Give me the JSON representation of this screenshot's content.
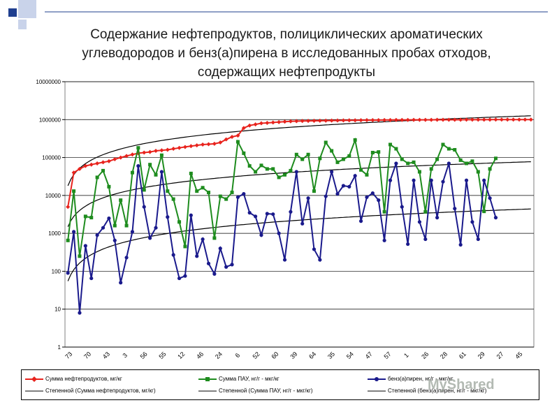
{
  "title_lines": [
    "Содержание нефтепродуктов, полициклических ароматических",
    "углеводородов  и бенз(а)пирена в исследованных пробах отходов,",
    "содержащих нефтепродукты"
  ],
  "watermark": "MyShared",
  "colors": {
    "red": "#e8231d",
    "green": "#1e8c1e",
    "blue": "#1a1a8c",
    "trend": "#000000",
    "accent": "#1f3f8f"
  },
  "chart_data": {
    "type": "line",
    "yscale": "log",
    "ylim": [
      1,
      10000000
    ],
    "y_ticks": [
      "1",
      "10",
      "100",
      "1000",
      "10000",
      "100000",
      "1000000",
      "10000000"
    ],
    "x_tick_labels": [
      "73",
      "70",
      "43",
      "3",
      "56",
      "55",
      "12",
      "46",
      "24",
      "6",
      "52",
      "60",
      "39",
      "64",
      "35",
      "54",
      "47",
      "57",
      "1",
      "26",
      "28",
      "61",
      "29",
      "27",
      "45"
    ],
    "grid": "horizontal",
    "legend_position": "bottom",
    "series": [
      {
        "name": "Сумма нефтепродуктов, мг/кг",
        "color": "#e8231d",
        "marker": "diamond",
        "values": [
          5000,
          40000,
          50000,
          60000,
          65000,
          70000,
          75000,
          80000,
          90000,
          100000,
          110000,
          120000,
          130000,
          135000,
          140000,
          150000,
          155000,
          160000,
          170000,
          180000,
          190000,
          200000,
          210000,
          220000,
          225000,
          230000,
          250000,
          300000,
          350000,
          380000,
          600000,
          700000,
          750000,
          800000,
          820000,
          840000,
          860000,
          880000,
          900000,
          910000,
          920000,
          925000,
          930000,
          935000,
          940000,
          945000,
          950000,
          955000,
          960000,
          962000,
          965000,
          968000,
          970000,
          972000,
          975000,
          977000,
          980000,
          981000,
          983000,
          985000,
          986000,
          987000,
          988000,
          989000,
          990000,
          991000,
          992000,
          993000,
          994000,
          995000,
          996000,
          997000,
          998000,
          999000,
          1000000,
          1000000,
          1000000,
          1000000,
          1000000,
          1000000
        ]
      },
      {
        "name": "Сумма ПАУ, нг/г - мкг/кг",
        "color": "#1e8c1e",
        "marker": "square",
        "values": [
          650,
          13000,
          250,
          2800,
          2600,
          30000,
          45000,
          17000,
          1600,
          7500,
          1600,
          40000,
          180000,
          14000,
          65000,
          35000,
          115000,
          13000,
          8000,
          2000,
          450,
          38000,
          13000,
          16000,
          12000,
          750,
          9500,
          8000,
          12000,
          260000,
          130000,
          60000,
          42000,
          62000,
          50000,
          50000,
          30000,
          35000,
          45000,
          120000,
          90000,
          120000,
          13000,
          95000,
          250000,
          150000,
          75000,
          90000,
          110000,
          290000,
          47000,
          35000,
          135000,
          140000,
          3700,
          220000,
          170000,
          90000,
          70000,
          75000,
          42000,
          3700,
          50000,
          90000,
          220000,
          170000,
          160000,
          85000,
          70000,
          80000,
          42000,
          3800,
          50000,
          95000
        ]
      },
      {
        "name": "бенз(а)пирен, нг/г - мкг/кг",
        "color": "#1a1a8c",
        "marker": "circle",
        "values": [
          90,
          1100,
          8,
          470,
          65,
          900,
          1400,
          2500,
          650,
          50,
          230,
          1100,
          60000,
          5000,
          750,
          1400,
          42000,
          2700,
          270,
          65,
          75,
          3000,
          250,
          700,
          160,
          85,
          400,
          130,
          150,
          9000,
          11000,
          3500,
          2800,
          900,
          3300,
          3200,
          1000,
          200,
          3700,
          42000,
          1800,
          8500,
          380,
          200,
          9500,
          42000,
          11000,
          18000,
          17000,
          33000,
          2100,
          9000,
          11500,
          7500,
          650,
          25000,
          70000,
          5000,
          520,
          25000,
          2000,
          700,
          25000,
          2600,
          23000,
          70000,
          4500,
          500,
          25000,
          2000,
          700,
          25000,
          8500,
          2600
        ]
      },
      {
        "name": "Степенной (Сумма нефтепродуктов, мг/кг)",
        "color": "#000000",
        "trend": "power",
        "a": 18000,
        "b": 0.97,
        "x0": 1,
        "x1": 80
      },
      {
        "name": "Степенной (Сумма ПАУ, нг/г - мкг/кг)",
        "color": "#000000",
        "trend": "power",
        "a": 1500,
        "b": 0.9,
        "x0": 1,
        "x1": 80
      },
      {
        "name": "Степенной (бенз(а)пирен, нг/г - мкг/кг)",
        "color": "#000000",
        "trend": "power",
        "a": 55,
        "b": 1.0,
        "x0": 1,
        "x1": 80
      }
    ]
  }
}
